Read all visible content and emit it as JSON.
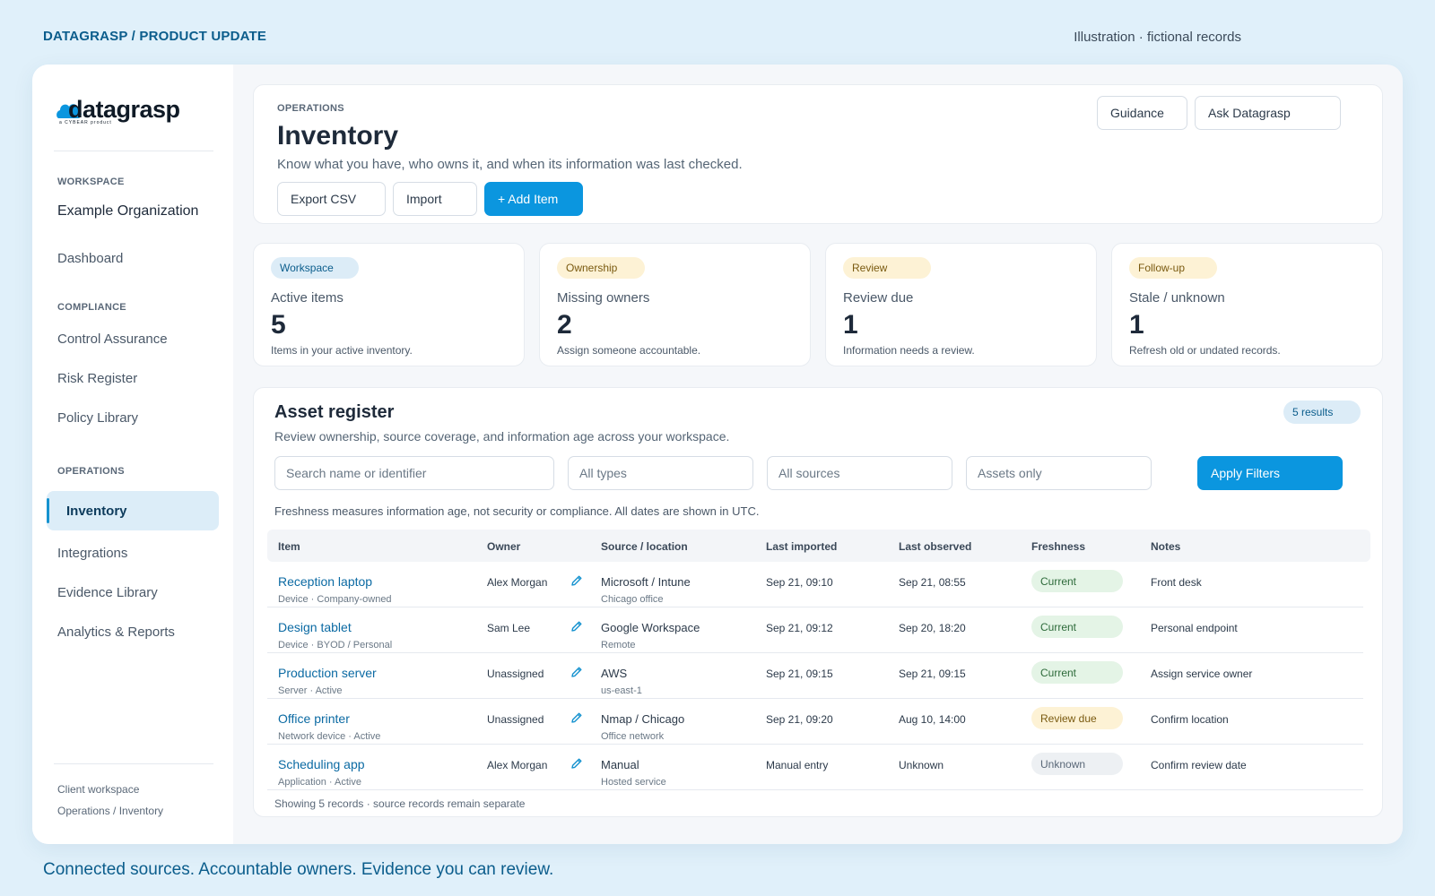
{
  "top": {
    "brand_tag": "DATAGRASP / PRODUCT UPDATE",
    "note": "Illustration · fictional records",
    "bottom_tagline": "Connected sources. Accountable owners. Evidence you can review."
  },
  "logo": {
    "text": "datagrasp",
    "subtext": "a CYBEAR product"
  },
  "sidebar": {
    "workspace_label": "WORKSPACE",
    "org_name": "Example Organization",
    "dashboard": "Dashboard",
    "compliance_label": "COMPLIANCE",
    "compliance_items": [
      "Control Assurance",
      "Risk Register",
      "Policy Library"
    ],
    "operations_label": "OPERATIONS",
    "active_item": "Inventory",
    "operations_items": [
      "Integrations",
      "Evidence Library",
      "Analytics & Reports"
    ],
    "footer_line1": "Client workspace",
    "footer_line2": "Operations / Inventory"
  },
  "header": {
    "eyebrow": "OPERATIONS",
    "title": "Inventory",
    "subtitle": "Know what you have, who owns it, and when its information was last checked.",
    "guidance_button": "Guidance",
    "ask_button": "Ask Datagrasp",
    "export_button": "Export CSV",
    "import_button": "Import",
    "add_button": "+ Add Item"
  },
  "stats": [
    {
      "tag": "Workspace",
      "label": "Active items",
      "value": "5",
      "desc": "Items in your active inventory."
    },
    {
      "tag": "Ownership",
      "label": "Missing owners",
      "value": "2",
      "desc": "Assign someone accountable."
    },
    {
      "tag": "Review",
      "label": "Review due",
      "value": "1",
      "desc": "Information needs a review."
    },
    {
      "tag": "Follow-up",
      "label": "Stale / unknown",
      "value": "1",
      "desc": "Refresh old or undated records."
    }
  ],
  "register": {
    "title": "Asset register",
    "subtitle": "Review ownership, source coverage, and information age across your workspace.",
    "results": "5 results",
    "search_placeholder": "Search name or identifier",
    "type_filter": "All types",
    "source_filter": "All sources",
    "scope_filter": "Assets only",
    "apply_button": "Apply Filters",
    "freshness_note": "Freshness measures information age, not security or compliance. All dates are shown in UTC.",
    "columns": [
      "Item",
      "Owner",
      "Source / location",
      "Last imported",
      "Last observed",
      "Freshness",
      "Notes"
    ],
    "rows": [
      {
        "name": "Reception laptop",
        "meta": "Device · Company-owned",
        "owner": "Alex Morgan",
        "source": "Microsoft / Intune",
        "location": "Chicago office",
        "imported": "Sep 21, 09:10",
        "observed": "Sep 21, 08:55",
        "freshness": "Current",
        "notes": "Front desk"
      },
      {
        "name": "Design tablet",
        "meta": "Device · BYOD / Personal",
        "owner": "Sam Lee",
        "source": "Google Workspace",
        "location": "Remote",
        "imported": "Sep 21, 09:12",
        "observed": "Sep 20, 18:20",
        "freshness": "Current",
        "notes": "Personal endpoint"
      },
      {
        "name": "Production server",
        "meta": "Server · Active",
        "owner": "Unassigned",
        "source": "AWS",
        "location": "us-east-1",
        "imported": "Sep 21, 09:15",
        "observed": "Sep 21, 09:15",
        "freshness": "Current",
        "notes": "Assign service owner"
      },
      {
        "name": "Office printer",
        "meta": "Network device · Active",
        "owner": "Unassigned",
        "source": "Nmap / Chicago",
        "location": "Office network",
        "imported": "Sep 21, 09:20",
        "observed": "Aug 10, 14:00",
        "freshness": "Review due",
        "notes": "Confirm location"
      },
      {
        "name": "Scheduling app",
        "meta": "Application · Active",
        "owner": "Alex Morgan",
        "source": "Manual",
        "location": "Hosted service",
        "imported": "Manual entry",
        "observed": "Unknown",
        "freshness": "Unknown",
        "notes": "Confirm review date"
      }
    ],
    "footer": "Showing 5 records · source records remain separate"
  },
  "colors": {
    "accent": "#0b96df",
    "brand_text": "#0b5d8c",
    "current": "#e4f4e6",
    "review_due": "#fdf2d5",
    "unknown": "#edf0f3"
  }
}
